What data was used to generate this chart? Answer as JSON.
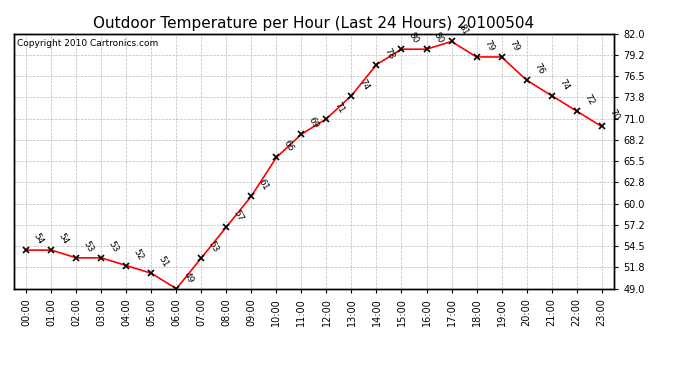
{
  "title": "Outdoor Temperature per Hour (Last 24 Hours) 20100504",
  "copyright": "Copyright 2010 Cartronics.com",
  "hours": [
    0,
    1,
    2,
    3,
    4,
    5,
    6,
    7,
    8,
    9,
    10,
    11,
    12,
    13,
    14,
    15,
    16,
    17,
    18,
    19,
    20,
    21,
    22,
    23
  ],
  "hour_labels": [
    "00:00",
    "01:00",
    "02:00",
    "03:00",
    "04:00",
    "05:00",
    "06:00",
    "07:00",
    "08:00",
    "09:00",
    "10:00",
    "11:00",
    "12:00",
    "13:00",
    "14:00",
    "15:00",
    "16:00",
    "17:00",
    "18:00",
    "19:00",
    "20:00",
    "21:00",
    "22:00",
    "23:00"
  ],
  "temps": [
    54,
    54,
    53,
    53,
    52,
    51,
    49,
    53,
    57,
    61,
    66,
    69,
    71,
    74,
    78,
    80,
    80,
    81,
    79,
    79,
    76,
    74,
    72,
    70
  ],
  "yticks": [
    49.0,
    51.8,
    54.5,
    57.2,
    60.0,
    62.8,
    65.5,
    68.2,
    71.0,
    73.8,
    76.5,
    79.2,
    82.0
  ],
  "ylim": [
    49.0,
    82.0
  ],
  "line_color": "red",
  "marker": "x",
  "marker_color": "black",
  "bg_color": "#ffffff",
  "grid_color": "#bbbbbb",
  "title_fontsize": 11,
  "tick_fontsize": 7,
  "label_fontsize": 6.5,
  "copyright_fontsize": 6.5
}
